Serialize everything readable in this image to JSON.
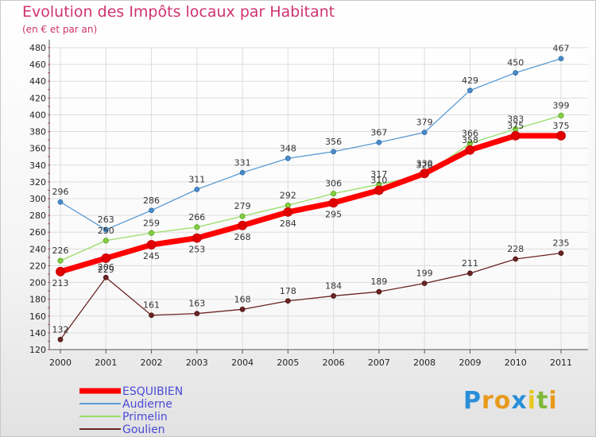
{
  "chart_data": {
    "type": "line",
    "title": "Evolution des Impôts locaux par Habitant",
    "subtitle": "(en € et par an)",
    "xlabel": "",
    "ylabel": "",
    "ylim": [
      120,
      480
    ],
    "yticks": [
      120,
      140,
      160,
      180,
      200,
      220,
      240,
      260,
      280,
      300,
      320,
      340,
      360,
      380,
      400,
      420,
      440,
      460,
      480
    ],
    "x": [
      "2000",
      "2001",
      "2002",
      "2003",
      "2004",
      "2005",
      "2006",
      "2007",
      "2008",
      "2009",
      "2010",
      "2011"
    ],
    "grid": true,
    "legend_position": "bottom-left",
    "series": [
      {
        "name": "ESQUIBIEN",
        "color": "#ff0000",
        "values": [
          213,
          229,
          245,
          253,
          268,
          284,
          295,
          310,
          330,
          358,
          375,
          375
        ]
      },
      {
        "name": "Audierne",
        "color": "#5a9bd5",
        "values": [
          296,
          263,
          286,
          311,
          331,
          348,
          356,
          367,
          379,
          429,
          450,
          467
        ]
      },
      {
        "name": "Primelin",
        "color": "#99dd66",
        "values": [
          226,
          250,
          259,
          266,
          279,
          292,
          306,
          317,
          328,
          366,
          383,
          399
        ]
      },
      {
        "name": "Goulien",
        "color": "#6b2424",
        "values": [
          132,
          206,
          161,
          163,
          168,
          178,
          184,
          189,
          199,
          211,
          228,
          235
        ]
      }
    ]
  },
  "brand": {
    "letters": [
      "P",
      "r",
      "o",
      "x",
      "i",
      "t",
      "i"
    ],
    "colors": [
      "#2a8fd8",
      "#e89a1c",
      "#e89a1c",
      "#2a8fd8",
      "#e8c81c",
      "#80b83a",
      "#e89a1c"
    ]
  }
}
